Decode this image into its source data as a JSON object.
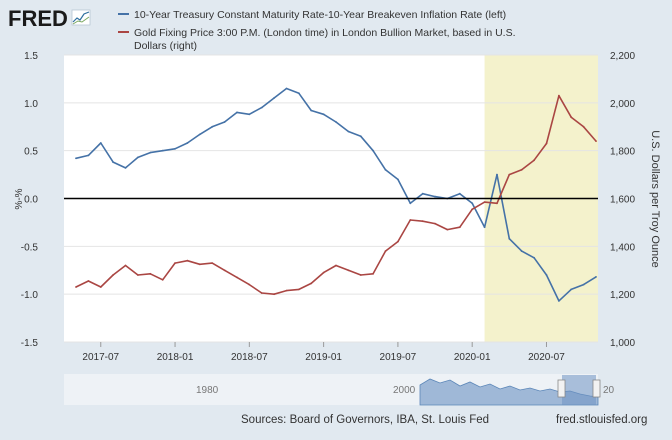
{
  "brand": {
    "logo_text": "FRED"
  },
  "legend": [
    {
      "label": "10-Year Treasury Constant Maturity Rate-10-Year Breakeven Inflation Rate (left)",
      "color": "#4572a7"
    },
    {
      "label_lines": [
        "Gold Fixing Price 3:00 P.M. (London time) in London Bullion Market, based in U.S.",
        "Dollars (right)"
      ],
      "color": "#aa4643"
    }
  ],
  "footer": {
    "sources": "Sources: Board of Governors, IBA, St. Louis Fed",
    "site": "fred.stlouisfed.org"
  },
  "navigator": {
    "labels": [
      "1980",
      "2000",
      "20"
    ]
  },
  "colors": {
    "plot_bg": "#ffffff",
    "page_bg": "#e1e9f0",
    "recession_shade": "#f4f2cc",
    "zero_line": "#000000"
  },
  "chart_data": {
    "type": "line",
    "ylabel": "%-%",
    "y2label": "U.S. Dollars per Troy Ounce",
    "ylim": [
      -1.5,
      1.5
    ],
    "y2lim": [
      1000,
      2200
    ],
    "yticks": [
      "1.5",
      "1.0",
      "0.5",
      "0.0",
      "-0.5",
      "-1.0",
      "-1.5"
    ],
    "y2ticks": [
      "2,200",
      "2,000",
      "1,800",
      "1,600",
      "1,400",
      "1,200",
      "1,000"
    ],
    "xticks": [
      "2017-07",
      "2018-01",
      "2018-07",
      "2019-01",
      "2019-07",
      "2020-01",
      "2020-07"
    ],
    "x_start": "2017-05",
    "x_end": "2020-11",
    "shaded_region": {
      "from": "2020-02",
      "to": "2020-11"
    },
    "series": [
      {
        "name": "10-Year Treasury Constant Maturity Rate-10-Year Breakeven Inflation Rate (left)",
        "axis": "left",
        "color": "#4572a7",
        "x": [
          "2017-05",
          "2017-06",
          "2017-07",
          "2017-08",
          "2017-09",
          "2017-10",
          "2017-11",
          "2017-12",
          "2018-01",
          "2018-02",
          "2018-03",
          "2018-04",
          "2018-05",
          "2018-06",
          "2018-07",
          "2018-08",
          "2018-09",
          "2018-10",
          "2018-11",
          "2018-12",
          "2019-01",
          "2019-02",
          "2019-03",
          "2019-04",
          "2019-05",
          "2019-06",
          "2019-07",
          "2019-08",
          "2019-09",
          "2019-10",
          "2019-11",
          "2019-12",
          "2020-01",
          "2020-02",
          "2020-03",
          "2020-04",
          "2020-05",
          "2020-06",
          "2020-07",
          "2020-08",
          "2020-09",
          "2020-10",
          "2020-11"
        ],
        "values": [
          0.42,
          0.45,
          0.58,
          0.38,
          0.32,
          0.43,
          0.48,
          0.5,
          0.52,
          0.58,
          0.67,
          0.75,
          0.8,
          0.9,
          0.88,
          0.95,
          1.05,
          1.15,
          1.1,
          0.92,
          0.88,
          0.8,
          0.7,
          0.65,
          0.5,
          0.3,
          0.2,
          -0.05,
          0.05,
          0.02,
          0.0,
          0.05,
          -0.05,
          -0.3,
          0.25,
          -0.42,
          -0.55,
          -0.62,
          -0.8,
          -1.07,
          -0.95,
          -0.9,
          -0.82
        ]
      },
      {
        "name": "Gold Fixing Price 3:00 P.M. (London time) in London Bullion Market, based in U.S. Dollars (right)",
        "axis": "right",
        "color": "#aa4643",
        "x": [
          "2017-05",
          "2017-06",
          "2017-07",
          "2017-08",
          "2017-09",
          "2017-10",
          "2017-11",
          "2017-12",
          "2018-01",
          "2018-02",
          "2018-03",
          "2018-04",
          "2018-05",
          "2018-06",
          "2018-07",
          "2018-08",
          "2018-09",
          "2018-10",
          "2018-11",
          "2018-12",
          "2019-01",
          "2019-02",
          "2019-03",
          "2019-04",
          "2019-05",
          "2019-06",
          "2019-07",
          "2019-08",
          "2019-09",
          "2019-10",
          "2019-11",
          "2019-12",
          "2020-01",
          "2020-02",
          "2020-03",
          "2020-04",
          "2020-05",
          "2020-06",
          "2020-07",
          "2020-08",
          "2020-09",
          "2020-10",
          "2020-11"
        ],
        "values": [
          1230,
          1255,
          1230,
          1280,
          1320,
          1280,
          1285,
          1260,
          1330,
          1340,
          1325,
          1330,
          1300,
          1270,
          1240,
          1205,
          1200,
          1215,
          1220,
          1245,
          1290,
          1320,
          1300,
          1280,
          1285,
          1380,
          1420,
          1510,
          1505,
          1495,
          1470,
          1480,
          1555,
          1585,
          1580,
          1700,
          1720,
          1760,
          1830,
          2030,
          1940,
          1900,
          1840
        ]
      }
    ]
  }
}
